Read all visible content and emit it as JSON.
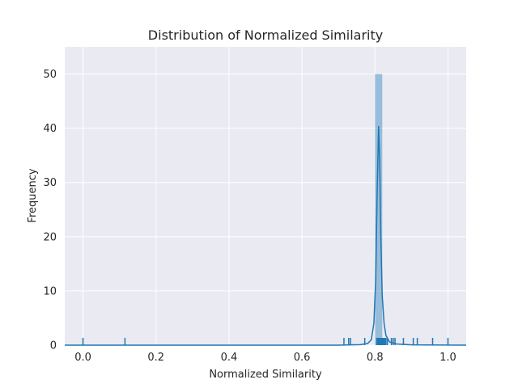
{
  "colors": {
    "plot_background": "#eaeaf2",
    "grid": "#ffffff",
    "bar": "#1f77b4",
    "kde_line": "#1f77b4",
    "rug": "#1f77b4"
  },
  "chart_data": {
    "type": "bar",
    "subtype": "histogram-with-kde-and-rug",
    "title": "Distribution of Normalized Similarity",
    "xlabel": "Normalized Similarity",
    "ylabel": "Frequency",
    "xlim": [
      -0.05,
      1.05
    ],
    "ylim": [
      0,
      55
    ],
    "xticks": [
      0.0,
      0.2,
      0.4,
      0.6,
      0.8,
      1.0
    ],
    "xtick_labels": [
      "0.0",
      "0.2",
      "0.4",
      "0.6",
      "0.8",
      "1.0"
    ],
    "yticks": [
      0,
      10,
      20,
      30,
      40,
      50
    ],
    "ytick_labels": [
      "0",
      "10",
      "20",
      "30",
      "40",
      "50"
    ],
    "grid": true,
    "histogram": [
      {
        "x0": 0.8,
        "x1": 0.82,
        "count": 50
      }
    ],
    "kde": [
      [
        -0.05,
        0
      ],
      [
        0.7,
        0
      ],
      [
        0.76,
        0.1
      ],
      [
        0.78,
        0.3
      ],
      [
        0.79,
        1.0
      ],
      [
        0.797,
        4.0
      ],
      [
        0.802,
        12.0
      ],
      [
        0.806,
        28.0
      ],
      [
        0.81,
        40.3
      ],
      [
        0.813,
        34.0
      ],
      [
        0.816,
        20.0
      ],
      [
        0.82,
        9.0
      ],
      [
        0.825,
        4.0
      ],
      [
        0.83,
        1.8
      ],
      [
        0.84,
        0.6
      ],
      [
        0.86,
        0.2
      ],
      [
        0.9,
        0.05
      ],
      [
        1.05,
        0
      ]
    ],
    "rug_values": [
      0.0,
      0.115,
      0.715,
      0.728,
      0.733,
      0.772,
      0.805,
      0.808,
      0.81,
      0.812,
      0.815,
      0.818,
      0.821,
      0.824,
      0.827,
      0.83,
      0.834,
      0.845,
      0.85,
      0.855,
      0.878,
      0.905,
      0.916,
      0.958,
      1.0
    ]
  }
}
